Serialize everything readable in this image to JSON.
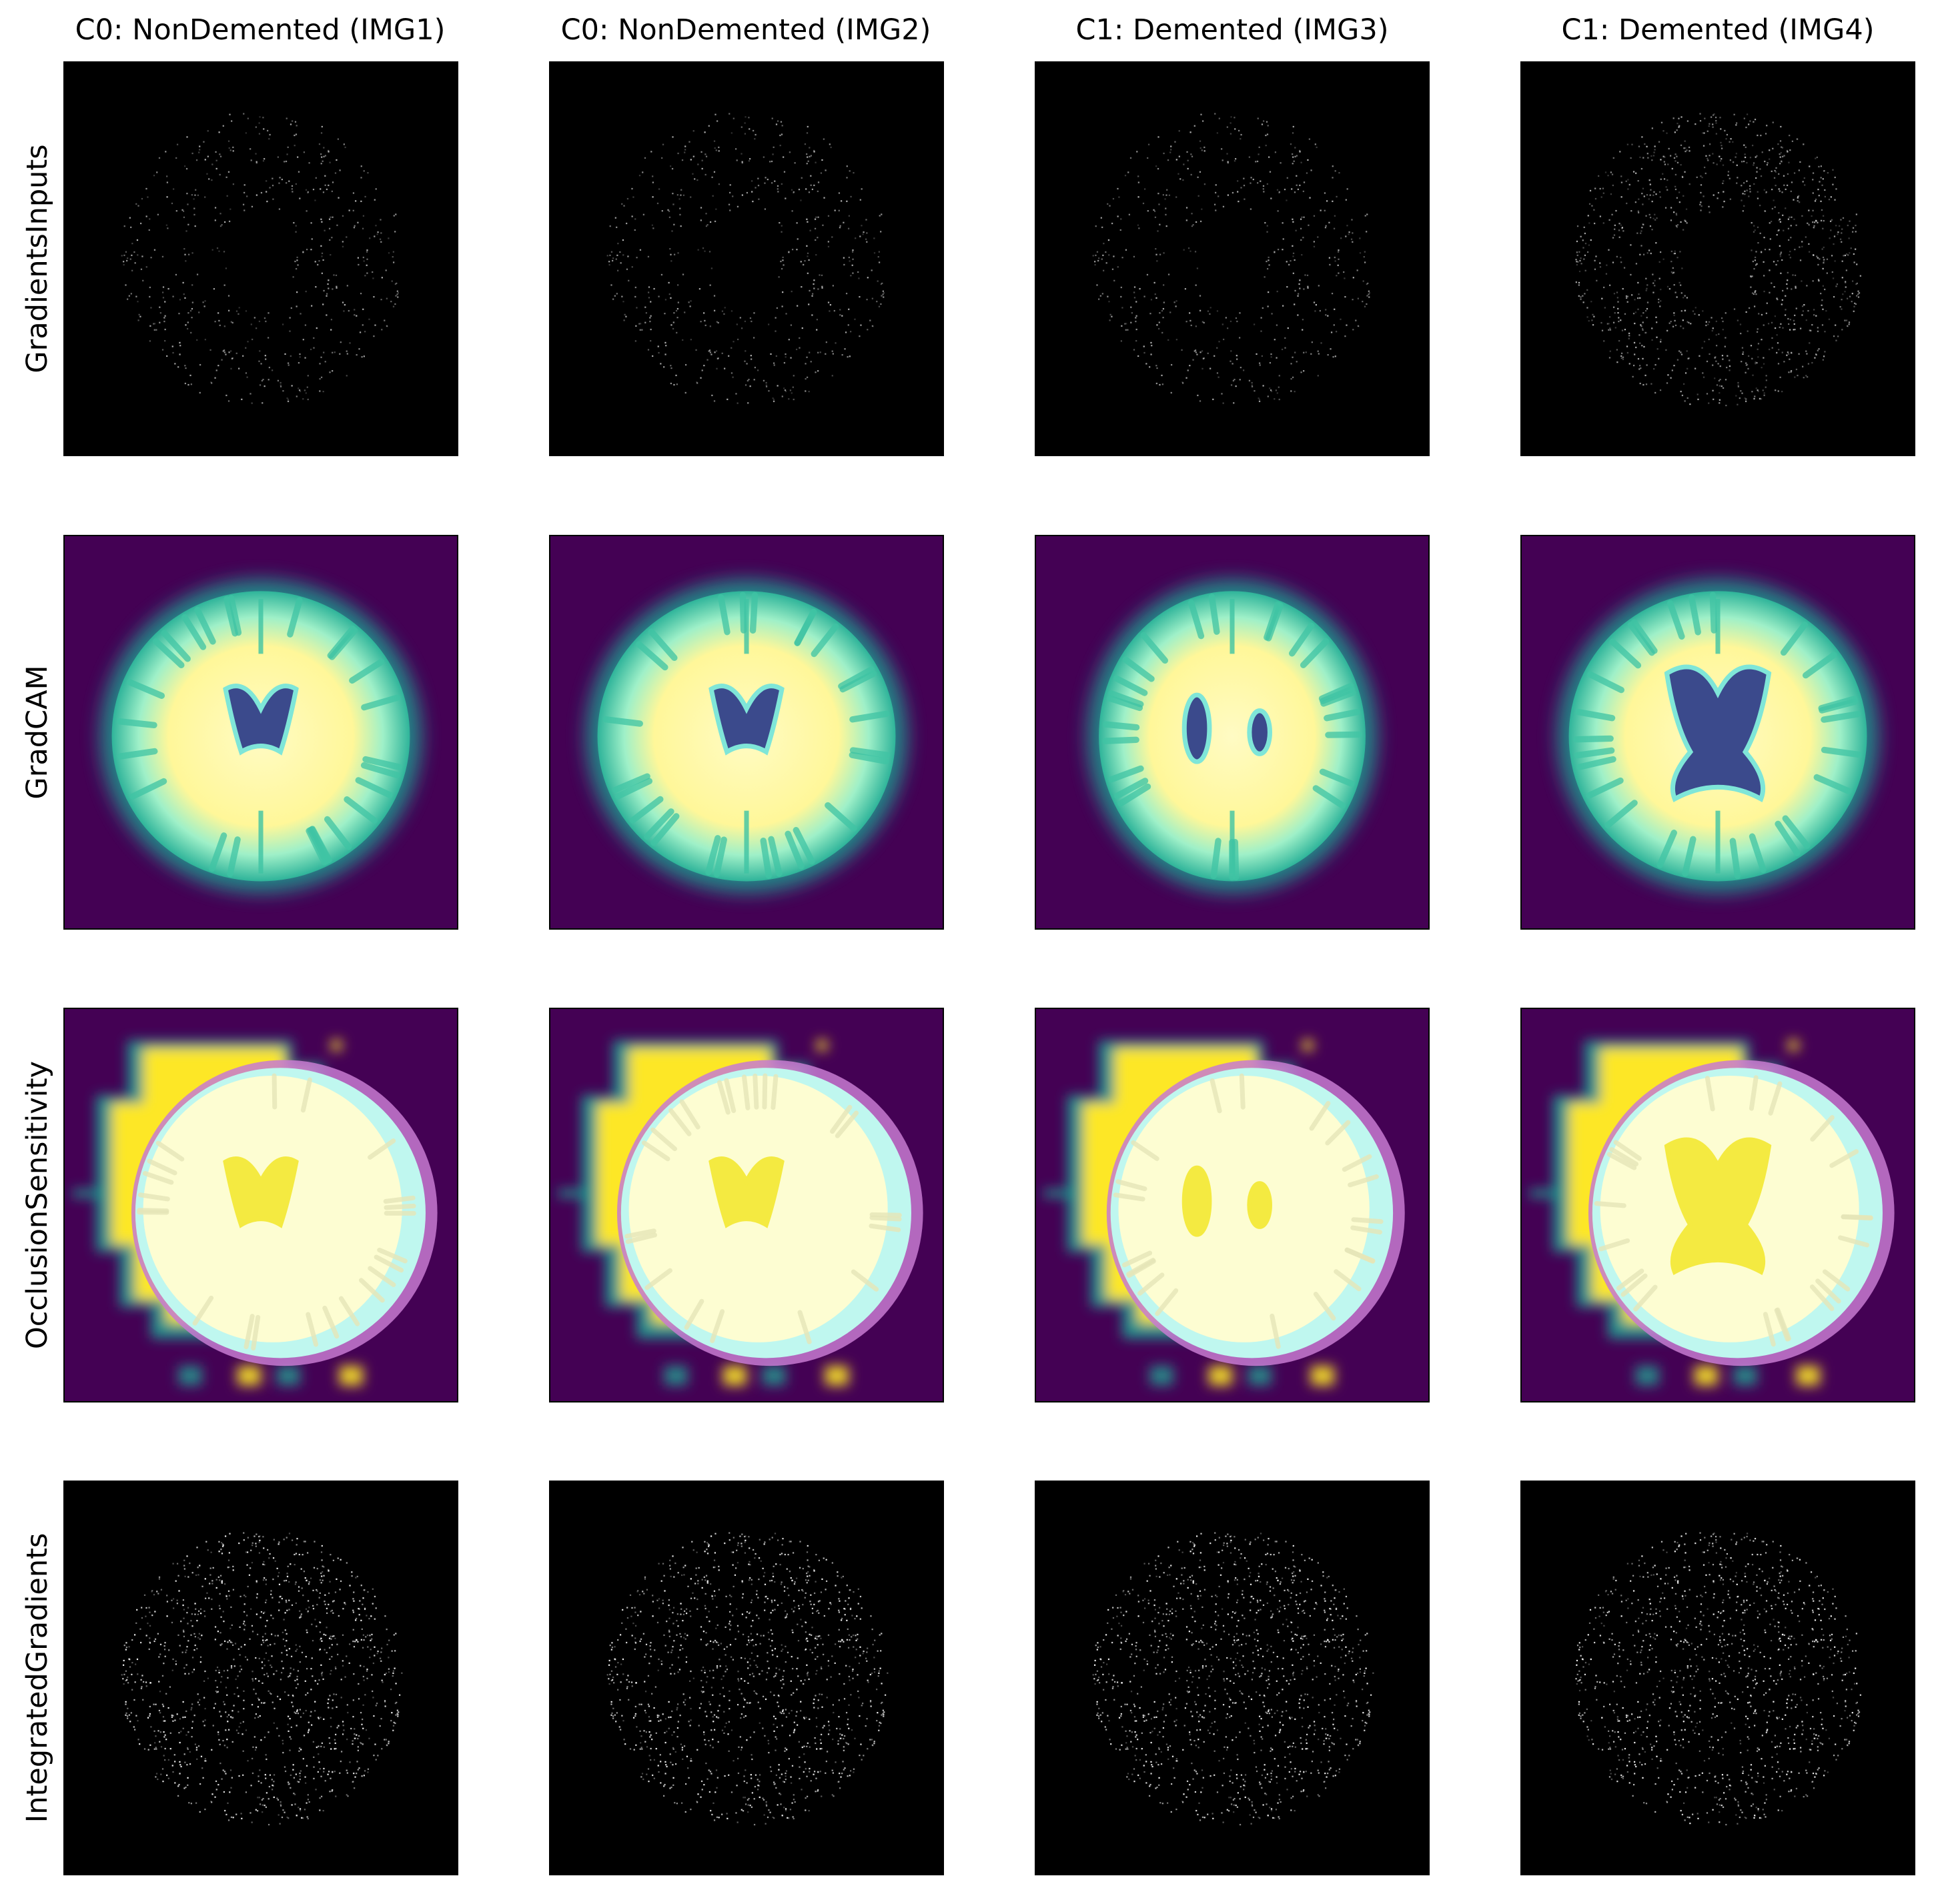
{
  "figure": {
    "columns": [
      {
        "title": "C0: NonDemented (IMG1)",
        "class": "NonDemented",
        "ventricle": "small"
      },
      {
        "title": "C0: NonDemented (IMG2)",
        "class": "NonDemented",
        "ventricle": "small"
      },
      {
        "title": "C1: Demented (IMG3)",
        "class": "Demented",
        "ventricle": "split"
      },
      {
        "title": "C1: Demented (IMG4)",
        "class": "Demented",
        "ventricle": "large"
      }
    ],
    "rows": [
      {
        "label": "GradientsInputs",
        "kind": "gradient-noise",
        "background": "#000000",
        "intensity": "low"
      },
      {
        "label": "GradCAM",
        "kind": "gradcam",
        "background": "#440154"
      },
      {
        "label": "OcclusionSensitivity",
        "kind": "occlusion",
        "background": "#440154"
      },
      {
        "label": "IntegratedGradients",
        "kind": "gradient-noise",
        "background": "#000000",
        "intensity": "high"
      }
    ],
    "colors": {
      "viridis_dark": "#440154",
      "viridis_teal": "#21918c",
      "viridis_cyan": "#7fffe8",
      "viridis_yellow": "#fde725",
      "overlay_white": "#ffffff",
      "ventricle_blue": "#3b4a8c",
      "rim_magenta": "#c77ad1"
    }
  }
}
